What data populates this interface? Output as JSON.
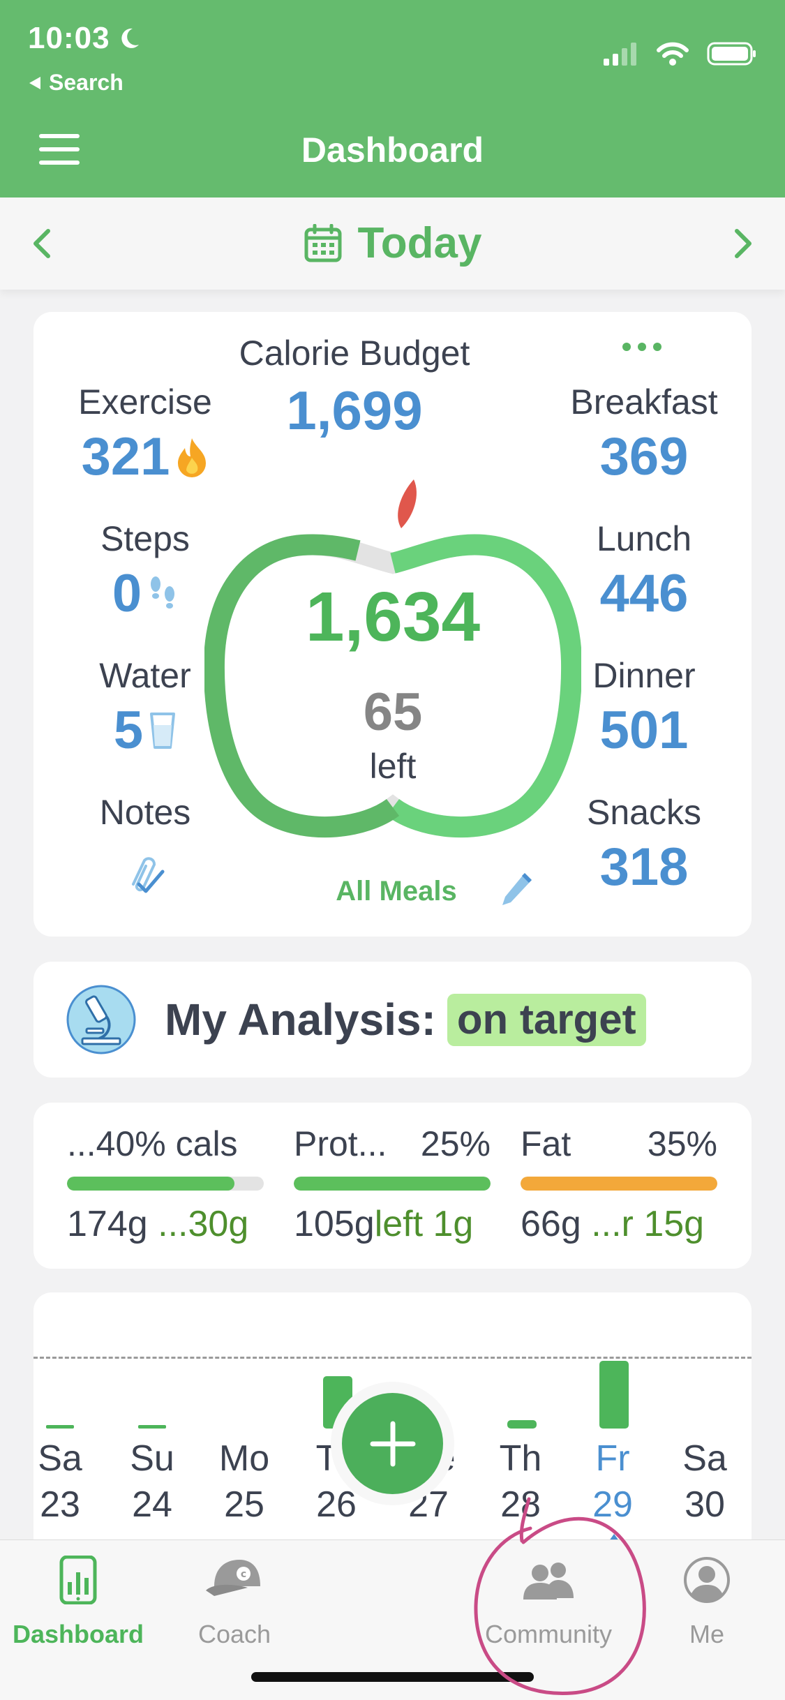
{
  "status_bar": {
    "time": "10:03",
    "back_label": "Search"
  },
  "header": {
    "title": "Dashboard"
  },
  "date_nav": {
    "label": "Today"
  },
  "summary": {
    "budget_label": "Calorie Budget",
    "budget_value": "1,699",
    "eaten": "1,634",
    "left_value": "65",
    "left_word": "left",
    "all_meals_label": "All Meals",
    "exercise": {
      "label": "Exercise",
      "value": "321"
    },
    "steps": {
      "label": "Steps",
      "value": "0"
    },
    "water": {
      "label": "Water",
      "value": "5"
    },
    "notes": {
      "label": "Notes"
    },
    "breakfast": {
      "label": "Breakfast",
      "value": "369"
    },
    "lunch": {
      "label": "Lunch",
      "value": "446"
    },
    "dinner": {
      "label": "Dinner",
      "value": "501"
    },
    "snacks": {
      "label": "Snacks",
      "value": "318"
    },
    "ring_progress": 0.96
  },
  "analysis": {
    "label": "My Analysis:",
    "status": "on target"
  },
  "macros": [
    {
      "name": "...40% cals",
      "pct": "",
      "amount": "174g",
      "remaining": "...30g",
      "fill": 0.85,
      "color": "#5cbf5c"
    },
    {
      "name": "Prot...",
      "pct": "25%",
      "amount": "105g",
      "remaining": "left 1g",
      "fill": 1.0,
      "color": "#5cbf5c"
    },
    {
      "name": "Fat",
      "pct": "35%",
      "amount": "66g",
      "remaining": "...r 15g",
      "fill": 1.0,
      "color": "#f3a83a"
    }
  ],
  "week": [
    {
      "name": "Sa",
      "num": "23"
    },
    {
      "name": "Su",
      "num": "24"
    },
    {
      "name": "Mo",
      "num": "25"
    },
    {
      "name": "Tu",
      "num": "26"
    },
    {
      "name": "We",
      "num": "27"
    },
    {
      "name": "Th",
      "num": "28"
    },
    {
      "name": "Fr",
      "num": "29"
    },
    {
      "name": "Sa",
      "num": "30"
    }
  ],
  "tabs": {
    "dashboard": "Dashboard",
    "coach": "Coach",
    "community": "Community",
    "me": "Me"
  },
  "colors": {
    "brand": "#65bb6e",
    "value_blue": "#4a8fd0",
    "annotation": "#c94b86"
  }
}
